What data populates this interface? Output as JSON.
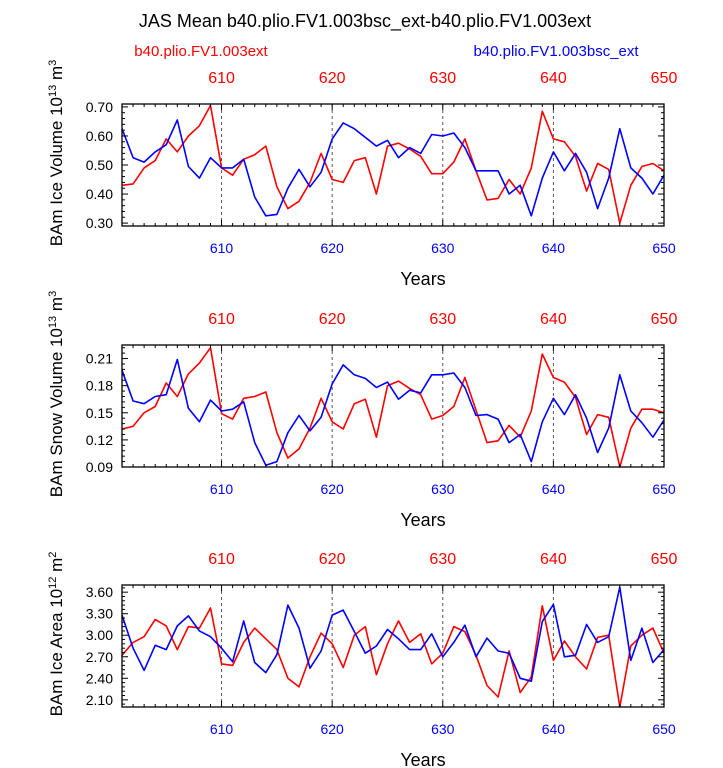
{
  "title": "JAS Mean b40.plio.FV1.003bsc_ext-b40.plio.FV1.003ext",
  "legend": {
    "left": {
      "label": "b40.plio.FV1.003ext",
      "color": "#ff0000"
    },
    "right": {
      "label": "b40.plio.FV1.003bsc_ext",
      "color": "#0000ff"
    }
  },
  "colors": {
    "red": "#ff0000",
    "blue": "#0000ff",
    "axis": "#000000",
    "grid": "#555555"
  },
  "chart_data": [
    {
      "type": "line",
      "title": "",
      "ylabel_main": "BAm Ice Volume 10",
      "ylabel_exp1": "13",
      "ylabel_mid": " m",
      "ylabel_exp2": "3",
      "xlabel": "Years",
      "xlim": [
        601,
        650
      ],
      "ylim": [
        0.29,
        0.71
      ],
      "yticks": [
        "0.30",
        "0.40",
        "0.50",
        "0.60",
        "0.70"
      ],
      "ytick_values": [
        0.3,
        0.4,
        0.5,
        0.6,
        0.7
      ],
      "xticks": [
        "610",
        "620",
        "630",
        "640",
        "650"
      ],
      "xtick_values": [
        610,
        620,
        630,
        640,
        650
      ],
      "series": [
        {
          "name": "b40.plio.FV1.003ext",
          "color": "#ff0000",
          "x": [
            601,
            602,
            603,
            604,
            605,
            606,
            607,
            608,
            609,
            610,
            611,
            612,
            613,
            614,
            615,
            616,
            617,
            618,
            619,
            620,
            621,
            622,
            623,
            624,
            625,
            626,
            627,
            628,
            629,
            630,
            631,
            632,
            633,
            634,
            635,
            636,
            637,
            638,
            639,
            640,
            641,
            642,
            643,
            644,
            645,
            646,
            647,
            648,
            649,
            650
          ],
          "values": [
            0.43,
            0.435,
            0.49,
            0.515,
            0.59,
            0.545,
            0.6,
            0.635,
            0.705,
            0.49,
            0.465,
            0.52,
            0.535,
            0.565,
            0.425,
            0.35,
            0.375,
            0.44,
            0.54,
            0.45,
            0.44,
            0.515,
            0.525,
            0.4,
            0.565,
            0.575,
            0.555,
            0.53,
            0.47,
            0.47,
            0.51,
            0.59,
            0.48,
            0.38,
            0.385,
            0.45,
            0.4,
            0.49,
            0.685,
            0.59,
            0.58,
            0.53,
            0.41,
            0.505,
            0.485,
            0.3,
            0.43,
            0.495,
            0.505,
            0.48
          ]
        },
        {
          "name": "b40.plio.FV1.003bsc_ext",
          "color": "#0000ff",
          "x": [
            601,
            602,
            603,
            604,
            605,
            606,
            607,
            608,
            609,
            610,
            611,
            612,
            613,
            614,
            615,
            616,
            617,
            618,
            619,
            620,
            621,
            622,
            623,
            624,
            625,
            626,
            627,
            628,
            629,
            630,
            631,
            632,
            633,
            634,
            635,
            636,
            637,
            638,
            639,
            640,
            641,
            642,
            643,
            644,
            645,
            646,
            647,
            648,
            649,
            650
          ],
          "values": [
            0.625,
            0.525,
            0.51,
            0.545,
            0.57,
            0.655,
            0.495,
            0.455,
            0.525,
            0.49,
            0.49,
            0.52,
            0.39,
            0.325,
            0.33,
            0.42,
            0.485,
            0.425,
            0.475,
            0.59,
            0.645,
            0.625,
            0.595,
            0.565,
            0.585,
            0.525,
            0.56,
            0.54,
            0.605,
            0.6,
            0.61,
            0.56,
            0.48,
            0.48,
            0.48,
            0.4,
            0.43,
            0.325,
            0.455,
            0.545,
            0.48,
            0.54,
            0.475,
            0.35,
            0.455,
            0.625,
            0.49,
            0.455,
            0.4,
            0.465
          ]
        }
      ]
    },
    {
      "type": "line",
      "title": "",
      "ylabel_main": "BAm Snow Volume 10",
      "ylabel_exp1": "13",
      "ylabel_mid": " m",
      "ylabel_exp2": "3",
      "xlabel": "Years",
      "xlim": [
        601,
        650
      ],
      "ylim": [
        0.09,
        0.225
      ],
      "yticks": [
        "0.09",
        "0.12",
        "0.15",
        "0.18",
        "0.21"
      ],
      "ytick_values": [
        0.09,
        0.12,
        0.15,
        0.18,
        0.21
      ],
      "xticks": [
        "610",
        "620",
        "630",
        "640",
        "650"
      ],
      "xtick_values": [
        610,
        620,
        630,
        640,
        650
      ],
      "series": [
        {
          "name": "b40.plio.FV1.003ext",
          "color": "#ff0000",
          "x": [
            601,
            602,
            603,
            604,
            605,
            606,
            607,
            608,
            609,
            610,
            611,
            612,
            613,
            614,
            615,
            616,
            617,
            618,
            619,
            620,
            621,
            622,
            623,
            624,
            625,
            626,
            627,
            628,
            629,
            630,
            631,
            632,
            633,
            634,
            635,
            636,
            637,
            638,
            639,
            640,
            641,
            642,
            643,
            644,
            645,
            646,
            647,
            648,
            649,
            650
          ],
          "values": [
            0.132,
            0.135,
            0.15,
            0.157,
            0.183,
            0.168,
            0.193,
            0.205,
            0.222,
            0.149,
            0.143,
            0.166,
            0.168,
            0.173,
            0.128,
            0.1,
            0.11,
            0.133,
            0.166,
            0.14,
            0.132,
            0.16,
            0.165,
            0.123,
            0.18,
            0.185,
            0.177,
            0.17,
            0.143,
            0.147,
            0.157,
            0.189,
            0.153,
            0.117,
            0.119,
            0.136,
            0.123,
            0.152,
            0.215,
            0.189,
            0.184,
            0.167,
            0.126,
            0.148,
            0.145,
            0.09,
            0.133,
            0.154,
            0.154,
            0.15
          ]
        },
        {
          "name": "b40.plio.FV1.003bsc_ext",
          "color": "#0000ff",
          "x": [
            601,
            602,
            603,
            604,
            605,
            606,
            607,
            608,
            609,
            610,
            611,
            612,
            613,
            614,
            615,
            616,
            617,
            618,
            619,
            620,
            621,
            622,
            623,
            624,
            625,
            626,
            627,
            628,
            629,
            630,
            631,
            632,
            633,
            634,
            635,
            636,
            637,
            638,
            639,
            640,
            641,
            642,
            643,
            644,
            645,
            646,
            647,
            648,
            649,
            650
          ],
          "values": [
            0.197,
            0.163,
            0.16,
            0.168,
            0.17,
            0.209,
            0.155,
            0.14,
            0.164,
            0.152,
            0.154,
            0.162,
            0.117,
            0.092,
            0.096,
            0.128,
            0.147,
            0.13,
            0.145,
            0.182,
            0.203,
            0.192,
            0.188,
            0.178,
            0.184,
            0.165,
            0.175,
            0.172,
            0.192,
            0.192,
            0.194,
            0.178,
            0.147,
            0.148,
            0.143,
            0.117,
            0.126,
            0.096,
            0.14,
            0.166,
            0.148,
            0.17,
            0.144,
            0.106,
            0.133,
            0.192,
            0.152,
            0.139,
            0.123,
            0.142
          ]
        }
      ]
    },
    {
      "type": "line",
      "title": "",
      "ylabel_main": "BAm Ice Area 10",
      "ylabel_exp1": "12",
      "ylabel_mid": " m",
      "ylabel_exp2": "2",
      "xlabel": "Years",
      "xlim": [
        601,
        650
      ],
      "ylim": [
        2.0,
        3.7
      ],
      "yticks": [
        "2.10",
        "2.40",
        "2.70",
        "3.00",
        "3.30",
        "3.60"
      ],
      "ytick_values": [
        2.1,
        2.4,
        2.7,
        3.0,
        3.3,
        3.6
      ],
      "xticks": [
        "610",
        "620",
        "630",
        "640",
        "650"
      ],
      "xtick_values": [
        610,
        620,
        630,
        640,
        650
      ],
      "series": [
        {
          "name": "b40.plio.FV1.003ext",
          "color": "#ff0000",
          "x": [
            601,
            602,
            603,
            604,
            605,
            606,
            607,
            608,
            609,
            610,
            611,
            612,
            613,
            614,
            615,
            616,
            617,
            618,
            619,
            620,
            621,
            622,
            623,
            624,
            625,
            626,
            627,
            628,
            629,
            630,
            631,
            632,
            633,
            634,
            635,
            636,
            637,
            638,
            639,
            640,
            641,
            642,
            643,
            644,
            645,
            646,
            647,
            648,
            649,
            650
          ],
          "values": [
            2.72,
            2.9,
            2.98,
            3.22,
            3.13,
            2.8,
            3.12,
            3.1,
            3.38,
            2.6,
            2.58,
            2.9,
            3.1,
            2.95,
            2.8,
            2.4,
            2.28,
            2.7,
            3.03,
            2.88,
            2.55,
            3.0,
            3.12,
            2.45,
            2.88,
            3.2,
            2.9,
            3.02,
            2.6,
            2.75,
            3.12,
            3.05,
            2.72,
            2.3,
            2.14,
            2.78,
            2.2,
            2.42,
            3.41,
            2.65,
            2.92,
            2.7,
            2.53,
            2.97,
            3.0,
            2.0,
            2.85,
            3.0,
            3.1,
            2.75
          ]
        },
        {
          "name": "b40.plio.FV1.003bsc_ext",
          "color": "#0000ff",
          "x": [
            601,
            602,
            603,
            604,
            605,
            606,
            607,
            608,
            609,
            610,
            611,
            612,
            613,
            614,
            615,
            616,
            617,
            618,
            619,
            620,
            621,
            622,
            623,
            624,
            625,
            626,
            627,
            628,
            629,
            630,
            631,
            632,
            633,
            634,
            635,
            636,
            637,
            638,
            639,
            640,
            641,
            642,
            643,
            644,
            645,
            646,
            647,
            648,
            649,
            650
          ],
          "values": [
            3.28,
            2.82,
            2.51,
            2.86,
            2.8,
            3.13,
            3.27,
            3.06,
            2.98,
            2.82,
            2.63,
            3.2,
            2.62,
            2.48,
            2.73,
            3.42,
            3.1,
            2.54,
            2.78,
            3.28,
            3.35,
            3.05,
            2.75,
            2.85,
            3.08,
            2.95,
            2.8,
            2.8,
            3.02,
            2.7,
            2.9,
            3.14,
            2.7,
            2.96,
            2.78,
            2.75,
            2.4,
            2.36,
            3.19,
            3.43,
            2.7,
            2.72,
            3.15,
            2.9,
            2.98,
            3.67,
            2.65,
            3.1,
            2.62,
            2.8
          ]
        }
      ]
    }
  ]
}
